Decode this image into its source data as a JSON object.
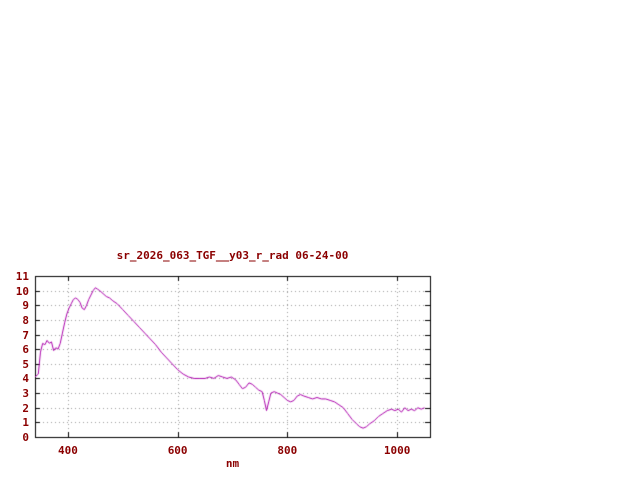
{
  "chart_data": {
    "type": "line",
    "title": "sr_2026_063_TGF__y03_r_rad 06-24-00",
    "xlabel": "nm",
    "ylabel": "",
    "xlim": [
      340,
      1060
    ],
    "ylim": [
      0,
      11
    ],
    "xticks": [
      400,
      600,
      800,
      1000
    ],
    "yticks": [
      0,
      1,
      2,
      3,
      4,
      5,
      6,
      7,
      8,
      9,
      10,
      11
    ],
    "grid": "dotted",
    "legend": "none",
    "colors": {
      "line": "#aa00aa",
      "text": "#8b0000",
      "grid": "#999999",
      "border": "#000000",
      "background": "#ffffff"
    },
    "series": [
      {
        "x": [
          340,
          346,
          350,
          354,
          358,
          362,
          366,
          370,
          374,
          378,
          382,
          386,
          390,
          394,
          398,
          402,
          406,
          410,
          414,
          418,
          422,
          426,
          430,
          434,
          438,
          442,
          446,
          450,
          454,
          458,
          464,
          470,
          476,
          482,
          490,
          500,
          510,
          520,
          530,
          540,
          550,
          560,
          570,
          580,
          590,
          600,
          610,
          620,
          630,
          640,
          650,
          658,
          666,
          674,
          682,
          690,
          698,
          706,
          712,
          718,
          724,
          730,
          736,
          742,
          748,
          754,
          758,
          762,
          766,
          770,
          776,
          782,
          788,
          794,
          800,
          806,
          812,
          818,
          824,
          830,
          838,
          846,
          854,
          862,
          870,
          878,
          886,
          894,
          902,
          910,
          918,
          926,
          932,
          938,
          944,
          950,
          958,
          966,
          974,
          982,
          990,
          996,
          1002,
          1008,
          1014,
          1020,
          1026,
          1032,
          1038,
          1044,
          1050
        ],
        "y": [
          4.1,
          4.3,
          5.8,
          6.4,
          6.3,
          6.6,
          6.4,
          6.5,
          5.9,
          6.1,
          6.0,
          6.4,
          7.1,
          7.8,
          8.4,
          8.8,
          9.1,
          9.4,
          9.5,
          9.4,
          9.2,
          8.8,
          8.7,
          9.0,
          9.4,
          9.7,
          10.0,
          10.2,
          10.1,
          10.0,
          9.8,
          9.6,
          9.5,
          9.3,
          9.1,
          8.7,
          8.3,
          7.9,
          7.5,
          7.1,
          6.7,
          6.3,
          5.8,
          5.4,
          5.0,
          4.6,
          4.3,
          4.1,
          4.0,
          4.0,
          4.0,
          4.1,
          4.0,
          4.2,
          4.1,
          4.0,
          4.1,
          3.9,
          3.6,
          3.3,
          3.4,
          3.7,
          3.6,
          3.4,
          3.2,
          3.1,
          2.5,
          1.8,
          2.4,
          3.0,
          3.1,
          3.0,
          2.9,
          2.7,
          2.5,
          2.4,
          2.5,
          2.8,
          2.9,
          2.8,
          2.7,
          2.6,
          2.7,
          2.6,
          2.6,
          2.5,
          2.4,
          2.2,
          2.0,
          1.6,
          1.2,
          0.9,
          0.7,
          0.6,
          0.7,
          0.9,
          1.1,
          1.4,
          1.6,
          1.8,
          1.9,
          1.8,
          1.9,
          1.7,
          2.0,
          1.8,
          1.9,
          1.8,
          2.0,
          1.9,
          2.0
        ]
      }
    ]
  }
}
